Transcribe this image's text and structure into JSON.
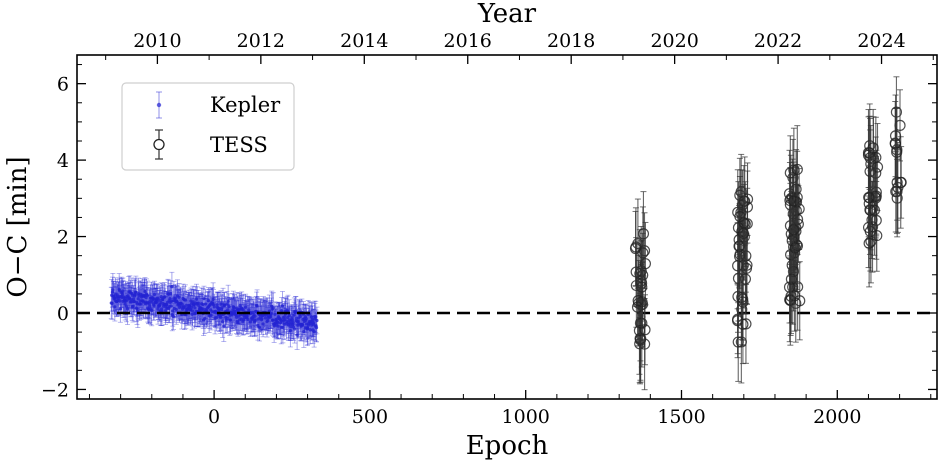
{
  "chart_data": {
    "type": "scatter",
    "xlabel": "Epoch",
    "ylabel": "O−C [min]",
    "x2label": "Year",
    "xlim": [
      -440,
      2320
    ],
    "ylim": [
      -2.25,
      6.75
    ],
    "x_ticks": [
      0,
      500,
      1000,
      1500,
      2000
    ],
    "y_ticks": [
      -2,
      0,
      2,
      4,
      6
    ],
    "y_tick_labels": [
      "−2",
      "0",
      "2",
      "4",
      "6"
    ],
    "year_ticks": [
      {
        "label": "2010",
        "epoch": -182
      },
      {
        "label": "2012",
        "epoch": 150
      },
      {
        "label": "2014",
        "epoch": 482
      },
      {
        "label": "2016",
        "epoch": 814
      },
      {
        "label": "2018",
        "epoch": 1146
      },
      {
        "label": "2020",
        "epoch": 1478
      },
      {
        "label": "2022",
        "epoch": 1810
      },
      {
        "label": "2024",
        "epoch": 2142
      }
    ],
    "reference_line": {
      "y": 0,
      "style": "dashed"
    },
    "legend_position": "upper-left",
    "series": [
      {
        "name": "Kepler",
        "marker": "dot",
        "color": "#2323d2",
        "x_range": [
          -330,
          330
        ],
        "trend": {
          "y_at_start": 0.45,
          "y_at_end": -0.3
        },
        "scatter": 0.22,
        "yerr": 0.38,
        "n_points": 520
      },
      {
        "name": "TESS",
        "marker": "open-circle",
        "color": "#000000",
        "groups": [
          {
            "x": [
              1350,
              1385
            ],
            "y_range": [
              -0.9,
              2.1
            ],
            "n": 30
          },
          {
            "x": [
              1680,
              1712
            ],
            "y_range": [
              -0.8,
              3.2
            ],
            "n": 40
          },
          {
            "x": [
              1845,
              1880
            ],
            "y_range": [
              0.25,
              3.8
            ],
            "n": 45
          },
          {
            "x": [
              2100,
              2130
            ],
            "y_range": [
              1.5,
              4.4
            ],
            "n": 30
          },
          {
            "x": [
              2185,
              2205
            ],
            "y_range": [
              2.9,
              5.4
            ],
            "n": 14
          }
        ],
        "yerr": 1.05
      }
    ]
  }
}
